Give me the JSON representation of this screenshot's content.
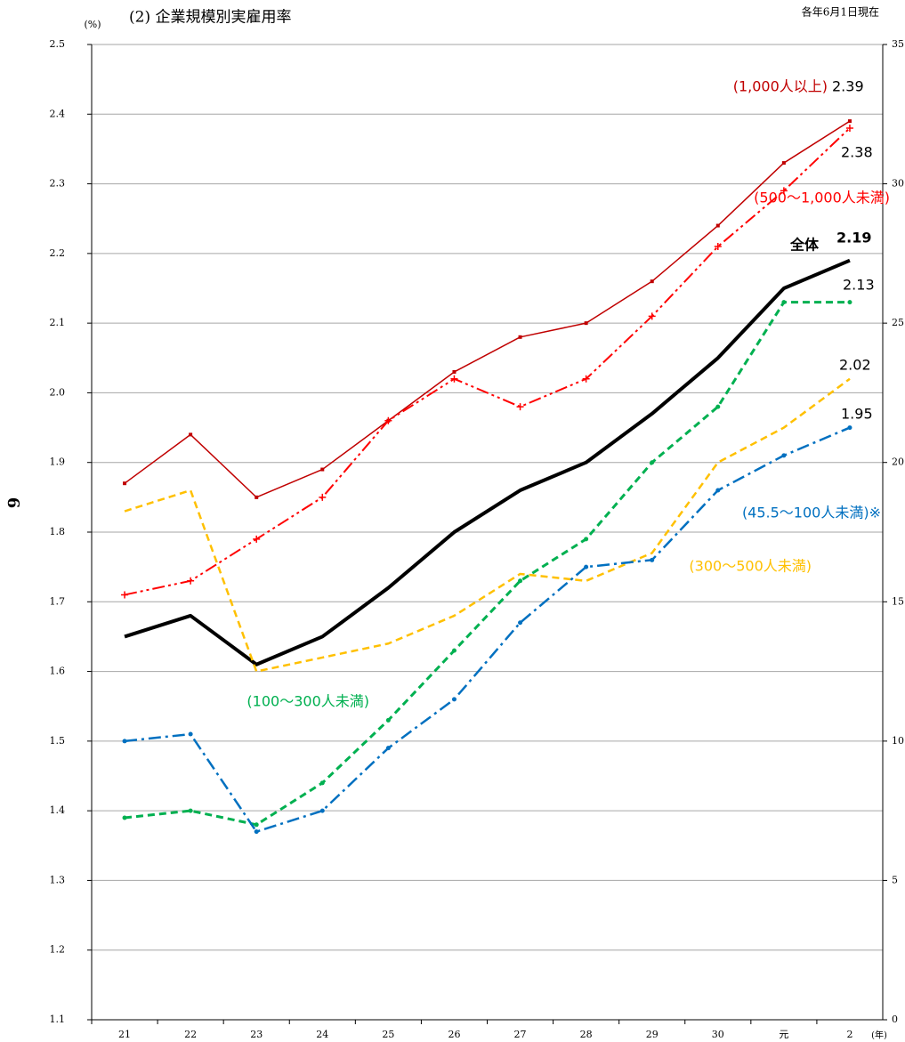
{
  "chart_data": {
    "type": "line",
    "title": "(2) 企業規模別実雇用率",
    "subtitle": "各年6月1日現在",
    "y_label": "(%)",
    "x_label": "(年)",
    "page_number": "6",
    "categories": [
      "21",
      "22",
      "23",
      "24",
      "25",
      "26",
      "27",
      "28",
      "29",
      "30",
      "元",
      "2"
    ],
    "ylim": [
      1.1,
      2.5
    ],
    "yticks": [
      {
        "value": 1.1,
        "label": "1.1"
      },
      {
        "value": 1.2,
        "label": "1.2"
      },
      {
        "value": 1.3,
        "label": "1.3"
      },
      {
        "value": 1.4,
        "label": "1.4"
      },
      {
        "value": 1.5,
        "label": "1.5"
      },
      {
        "value": 1.6,
        "label": "1.6"
      },
      {
        "value": 1.7,
        "label": "1.7"
      },
      {
        "value": 1.8,
        "label": "1.8"
      },
      {
        "value": 1.9,
        "label": "1.9"
      },
      {
        "value": 2.0,
        "label": "2.0"
      },
      {
        "value": 2.1,
        "label": "2.1"
      },
      {
        "value": 2.2,
        "label": "2.2"
      },
      {
        "value": 2.3,
        "label": "2.3"
      },
      {
        "value": 2.4,
        "label": "2.4"
      },
      {
        "value": 2.5,
        "label": "2.5"
      }
    ],
    "y2lim": [
      0,
      35
    ],
    "y2ticks": [
      0,
      5,
      10,
      15,
      20,
      25,
      30,
      35
    ],
    "grid": true,
    "series": [
      {
        "name": "(1,000人以上)",
        "color": "#c00000",
        "linestyle": "solid",
        "width": 1.5,
        "marker": "square",
        "values": [
          1.87,
          1.94,
          1.85,
          1.89,
          1.96,
          2.03,
          2.08,
          2.1,
          2.16,
          2.24,
          2.33,
          2.39
        ]
      },
      {
        "name": "(500～1,000人未満)",
        "color": "#ff0000",
        "linestyle": "dashdotdot",
        "width": 2,
        "marker": "plus",
        "values": [
          1.71,
          1.73,
          1.79,
          1.85,
          1.96,
          2.02,
          1.98,
          2.02,
          2.11,
          2.21,
          2.29,
          2.38
        ]
      },
      {
        "name": "全体",
        "color": "#000000",
        "linestyle": "solid",
        "width": 4,
        "marker": "none",
        "values": [
          1.65,
          1.68,
          1.61,
          1.65,
          1.72,
          1.8,
          1.86,
          1.9,
          1.97,
          2.05,
          2.15,
          2.19
        ]
      },
      {
        "name": "(300～500人未満)",
        "color": "#ffc000",
        "linestyle": "dashed",
        "width": 2.5,
        "marker": "none",
        "values": [
          1.83,
          1.86,
          1.6,
          1.62,
          1.64,
          1.68,
          1.74,
          1.73,
          1.77,
          1.9,
          1.95,
          2.02
        ]
      },
      {
        "name": "(100～300人未満)",
        "color": "#00b050",
        "linestyle": "dashed",
        "width": 3,
        "marker": "dot",
        "values": [
          1.39,
          1.4,
          1.38,
          1.44,
          1.53,
          1.63,
          1.73,
          1.79,
          1.9,
          1.98,
          2.13,
          2.13
        ]
      },
      {
        "name": "(45.5～100人未満)※",
        "color": "#0070c0",
        "linestyle": "dashdot",
        "width": 2.5,
        "marker": "dot",
        "values": [
          1.5,
          1.51,
          1.37,
          1.4,
          1.49,
          1.56,
          1.67,
          1.75,
          1.76,
          1.86,
          1.91,
          1.95
        ]
      }
    ]
  }
}
